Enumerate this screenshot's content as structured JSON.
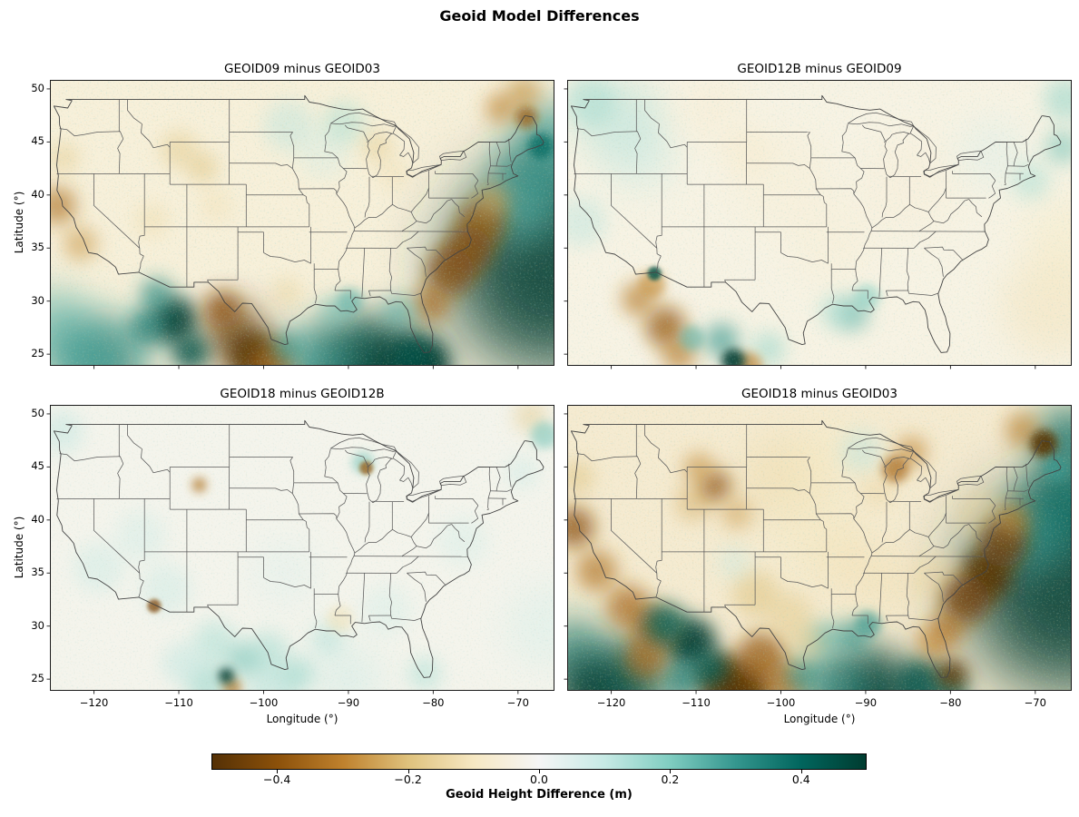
{
  "figure": {
    "suptitle": "Geoid Model Differences"
  },
  "chart_data": {
    "type": "heatmap",
    "layout": "2x2 map grid with shared horizontal colorbar",
    "suptitle": "Geoid Model Differences",
    "axes": {
      "xlabel": "Longitude (°)",
      "ylabel": "Latitude (°)",
      "xtick_labels": [
        "−120",
        "−110",
        "−100",
        "−90",
        "−80",
        "−70"
      ],
      "xtick_values": [
        -120,
        -110,
        -100,
        -90,
        -80,
        -70
      ],
      "ytick_labels": [
        "50",
        "45",
        "40",
        "35",
        "30",
        "25"
      ],
      "ytick_values": [
        50,
        45,
        40,
        35,
        30,
        25
      ],
      "lon_range": [
        -125.2,
        -65.7
      ],
      "lat_range": [
        23.9,
        50.85
      ],
      "grid": false,
      "region": "Continental United States with state boundaries"
    },
    "colorbar": {
      "label": "Geoid Height Difference (m)",
      "tick_labels": [
        "−0.4",
        "−0.2",
        "0.0",
        "0.2",
        "0.4"
      ],
      "tick_values": [
        -0.4,
        -0.2,
        0.0,
        0.2,
        0.4
      ],
      "vmin": -0.5,
      "vmax": 0.5,
      "colormap": "BrBG",
      "stops": [
        "#543005",
        "#8c510a",
        "#bf812d",
        "#dfc27d",
        "#f6e8c3",
        "#f5f5f5",
        "#c7eae5",
        "#80cdc1",
        "#35978f",
        "#01665e",
        "#003c30"
      ]
    },
    "features_format": "[lon_deg, lat_deg, value_m, radius_deg]",
    "panels": [
      {
        "title": "GEOID09 minus GEOID03",
        "base": "#f7f0da",
        "noise_teal": 0.55,
        "noise_tan": 0.5,
        "features": [
          [
            -66.0,
            33.0,
            0.5,
            12
          ],
          [
            -67.5,
            41.5,
            0.35,
            5
          ],
          [
            -70.0,
            38.5,
            0.25,
            4
          ],
          [
            -66.0,
            45.5,
            0.3,
            4
          ],
          [
            -89.0,
            23.8,
            0.45,
            6
          ],
          [
            -84.0,
            23.5,
            0.5,
            5
          ],
          [
            -94.5,
            24.2,
            0.3,
            4
          ],
          [
            -118.5,
            24.5,
            0.35,
            5
          ],
          [
            -124.5,
            28.0,
            0.25,
            4
          ],
          [
            -122.0,
            25.0,
            0.3,
            4
          ],
          [
            -74.3,
            37.3,
            -0.38,
            2.8
          ],
          [
            -75.9,
            34.8,
            -0.42,
            2.8
          ],
          [
            -78.0,
            32.8,
            -0.42,
            2.8
          ],
          [
            -80.2,
            29.8,
            -0.35,
            2.2
          ],
          [
            -73.0,
            39.5,
            -0.25,
            2.0
          ],
          [
            -80.6,
            24.2,
            0.55,
            2.4
          ],
          [
            -82.5,
            24.8,
            0.45,
            2.2
          ],
          [
            -103.2,
            26.6,
            -0.55,
            3.4
          ],
          [
            -101.0,
            24.6,
            -0.5,
            3.0
          ],
          [
            -104.8,
            29.2,
            -0.4,
            2.2
          ],
          [
            -99.0,
            24.0,
            -0.35,
            2.5
          ],
          [
            -110.6,
            28.2,
            0.5,
            2.8
          ],
          [
            -108.6,
            25.2,
            0.45,
            2.2
          ],
          [
            -112.6,
            30.6,
            0.32,
            2.0
          ],
          [
            -113.8,
            27.5,
            0.35,
            2.2
          ],
          [
            -124.3,
            39.0,
            -0.33,
            2.2
          ],
          [
            -121.6,
            35.4,
            -0.26,
            2.0
          ],
          [
            -123.6,
            43.5,
            -0.18,
            1.8
          ],
          [
            -110.0,
            44.3,
            -0.18,
            2.2
          ],
          [
            -107.2,
            42.6,
            -0.2,
            1.8
          ],
          [
            -105.6,
            39.0,
            -0.12,
            2.0
          ],
          [
            -113.2,
            37.6,
            -0.14,
            2.0
          ],
          [
            -97.2,
            30.8,
            -0.16,
            1.8
          ],
          [
            -86.6,
            44.6,
            -0.18,
            1.8
          ],
          [
            -84.8,
            42.0,
            -0.12,
            2.0
          ],
          [
            -72.0,
            48.2,
            -0.3,
            1.8
          ],
          [
            -69.3,
            49.6,
            -0.28,
            2.0
          ],
          [
            -69.0,
            47.3,
            -0.38,
            1.3
          ],
          [
            -67.3,
            44.6,
            0.4,
            1.5
          ],
          [
            -91.5,
            29.0,
            0.22,
            1.8
          ],
          [
            -89.8,
            30.0,
            0.25,
            1.5
          ],
          [
            -84.0,
            29.0,
            0.25,
            2.0
          ],
          [
            -97.2,
            25.6,
            0.3,
            1.8
          ],
          [
            -97.0,
            46.5,
            0.12,
            3
          ],
          [
            -90.5,
            46.8,
            0.15,
            2.5
          ],
          [
            -93.0,
            44.0,
            0.08,
            3
          ]
        ]
      },
      {
        "title": "GEOID12B minus GEOID09",
        "base": "#f7f3e4",
        "noise_teal": 0.5,
        "noise_tan": 0.35,
        "features": [
          [
            -119.0,
            47.0,
            0.14,
            5
          ],
          [
            -122.5,
            48.8,
            0.16,
            3
          ],
          [
            -116.5,
            43.5,
            0.1,
            4
          ],
          [
            -123.5,
            37.5,
            0.12,
            3
          ],
          [
            -115.2,
            31.6,
            -0.28,
            1.6
          ],
          [
            -116.8,
            30.2,
            -0.32,
            2.0
          ],
          [
            -113.6,
            27.6,
            -0.38,
            2.4
          ],
          [
            -112.0,
            25.0,
            -0.32,
            2.0
          ],
          [
            -110.5,
            26.5,
            0.25,
            1.5
          ],
          [
            -114.9,
            32.6,
            0.45,
            0.8
          ],
          [
            -105.6,
            24.4,
            0.55,
            1.4
          ],
          [
            -107.0,
            26.3,
            0.3,
            2.0
          ],
          [
            -103.8,
            23.9,
            -0.3,
            1.6
          ],
          [
            -101.5,
            25.5,
            0.18,
            2.0
          ],
          [
            -91.6,
            28.8,
            0.25,
            2.0
          ],
          [
            -89.8,
            30.4,
            0.2,
            1.5
          ],
          [
            -93.5,
            29.0,
            0.15,
            2.0
          ],
          [
            -68.0,
            29.5,
            -0.12,
            6
          ],
          [
            -66.5,
            36.0,
            -0.1,
            5
          ],
          [
            -70.5,
            41.3,
            0.15,
            2.2
          ],
          [
            -66.8,
            44.5,
            0.22,
            2.0
          ],
          [
            -66.5,
            49.0,
            0.18,
            2.5
          ],
          [
            -100.0,
            41.5,
            -0.07,
            6
          ],
          [
            -94.0,
            35.5,
            -0.07,
            5
          ],
          [
            -85.0,
            41.0,
            -0.06,
            6
          ],
          [
            -75.0,
            44.0,
            0.07,
            4
          ],
          [
            -108.0,
            48.0,
            -0.08,
            4
          ],
          [
            -104.0,
            44.0,
            -0.08,
            3
          ]
        ]
      },
      {
        "title": "GEOID18 minus GEOID12B",
        "base": "#f4f4ec",
        "noise_teal": 0.4,
        "noise_tan": 0.25,
        "features": [
          [
            -107.6,
            43.3,
            -0.33,
            0.9
          ],
          [
            -87.9,
            44.9,
            -0.38,
            0.8
          ],
          [
            -88.3,
            45.4,
            0.22,
            1.3
          ],
          [
            -112.9,
            31.9,
            -0.42,
            0.8
          ],
          [
            -104.4,
            25.3,
            0.55,
            0.9
          ],
          [
            -103.7,
            24.2,
            -0.32,
            1.1
          ],
          [
            -102.5,
            26.8,
            0.22,
            2.0
          ],
          [
            -105.8,
            28.5,
            0.15,
            2.5
          ],
          [
            -99.5,
            27.5,
            0.16,
            2.5
          ],
          [
            -96.0,
            25.5,
            0.18,
            2.0
          ],
          [
            -91.0,
            30.7,
            -0.13,
            1.6
          ],
          [
            -92.5,
            28.8,
            0.14,
            2.0
          ],
          [
            -119.5,
            35.5,
            0.1,
            3
          ],
          [
            -114.5,
            38.5,
            0.09,
            3
          ],
          [
            -123.8,
            48.3,
            0.12,
            2.5
          ],
          [
            -111.5,
            33.5,
            0.1,
            3
          ],
          [
            -76.5,
            38.0,
            0.08,
            3
          ],
          [
            -69.5,
            44.5,
            0.1,
            2
          ],
          [
            -66.9,
            48.0,
            0.22,
            1.6
          ],
          [
            -68.5,
            49.8,
            -0.18,
            2.0
          ],
          [
            -85.5,
            31.5,
            0.08,
            3
          ],
          [
            -97.5,
            35.0,
            0.06,
            4
          ],
          [
            -81.0,
            25.5,
            0.15,
            2
          ],
          [
            -90.0,
            25.0,
            0.1,
            4
          ],
          [
            -99.0,
            24.0,
            0.14,
            3
          ],
          [
            -106.5,
            24.5,
            0.18,
            2.5
          ],
          [
            -109.5,
            26.5,
            0.12,
            2.5
          ],
          [
            -66.5,
            30.0,
            0.08,
            5
          ]
        ]
      },
      {
        "title": "GEOID18 minus GEOID03",
        "base": "#f5ebd1",
        "noise_teal": 0.5,
        "noise_tan": 0.6,
        "features": [
          [
            -66.0,
            33.5,
            0.5,
            12
          ],
          [
            -66.5,
            41.5,
            0.4,
            5
          ],
          [
            -70.5,
            38.0,
            0.3,
            4
          ],
          [
            -66.0,
            47.5,
            0.4,
            4
          ],
          [
            -73.8,
            37.8,
            -0.45,
            2.8
          ],
          [
            -75.8,
            34.8,
            -0.5,
            3.0
          ],
          [
            -78.2,
            32.5,
            -0.45,
            2.8
          ],
          [
            -80.3,
            29.8,
            -0.35,
            2.0
          ],
          [
            -72.6,
            40.0,
            -0.3,
            2.0
          ],
          [
            -82.0,
            28.5,
            -0.3,
            2.0
          ],
          [
            -79.8,
            25.4,
            -0.55,
            1.8
          ],
          [
            -83.5,
            24.5,
            0.45,
            3.0
          ],
          [
            -80.0,
            23.8,
            0.4,
            2.0
          ],
          [
            -89.0,
            23.8,
            0.5,
            5
          ],
          [
            -93.8,
            24.4,
            0.35,
            4
          ],
          [
            -97.3,
            25.3,
            0.3,
            2.0
          ],
          [
            -91.5,
            29.0,
            0.3,
            2.0
          ],
          [
            -89.7,
            30.2,
            0.3,
            1.5
          ],
          [
            -94.8,
            28.8,
            0.25,
            2.0
          ],
          [
            -106.8,
            24.8,
            -0.6,
            3.2
          ],
          [
            -104.0,
            23.9,
            -0.5,
            3.0
          ],
          [
            -102.3,
            27.0,
            -0.38,
            3.0
          ],
          [
            -99.5,
            24.5,
            -0.35,
            2.5
          ],
          [
            -110.6,
            28.4,
            0.55,
            3.0
          ],
          [
            -113.6,
            30.2,
            0.4,
            2.4
          ],
          [
            -108.2,
            26.0,
            0.42,
            2.0
          ],
          [
            -111.5,
            25.0,
            0.35,
            2.5
          ],
          [
            -118.5,
            24.5,
            0.45,
            5
          ],
          [
            -124.5,
            27.5,
            0.35,
            4
          ],
          [
            -122.5,
            24.0,
            0.5,
            4
          ],
          [
            -124.4,
            39.3,
            -0.4,
            2.4
          ],
          [
            -121.7,
            35.2,
            -0.33,
            2.4
          ],
          [
            -118.0,
            31.8,
            -0.35,
            2.6
          ],
          [
            -114.8,
            29.8,
            -0.4,
            2.6
          ],
          [
            -116.0,
            27.0,
            -0.35,
            2.5
          ],
          [
            -124.0,
            44.0,
            -0.2,
            2.0
          ],
          [
            -107.7,
            43.2,
            -0.4,
            1.8
          ],
          [
            -109.7,
            44.9,
            -0.28,
            1.8
          ],
          [
            -110.3,
            41.6,
            -0.22,
            2.2
          ],
          [
            -105.2,
            40.6,
            -0.25,
            1.8
          ],
          [
            -103.0,
            33.0,
            -0.2,
            2.8
          ],
          [
            -99.0,
            31.0,
            -0.18,
            2.8
          ],
          [
            -97.0,
            28.5,
            -0.18,
            2.0
          ],
          [
            -86.5,
            44.8,
            -0.35,
            1.6
          ],
          [
            -84.6,
            46.4,
            -0.3,
            1.8
          ],
          [
            -88.5,
            42.8,
            -0.15,
            2.0
          ],
          [
            -92.0,
            36.0,
            -0.12,
            4
          ],
          [
            -100.0,
            44.0,
            -0.14,
            5
          ],
          [
            -96.0,
            39.0,
            -0.1,
            5
          ],
          [
            -87.0,
            34.0,
            -0.12,
            4
          ],
          [
            -81.5,
            34.5,
            -0.15,
            3
          ],
          [
            -76.5,
            40.5,
            -0.15,
            3
          ],
          [
            -69.0,
            47.2,
            -0.5,
            1.6
          ],
          [
            -71.5,
            48.5,
            -0.3,
            2.0
          ],
          [
            -67.5,
            44.8,
            0.3,
            1.5
          ],
          [
            -95.0,
            46.0,
            -0.1,
            4
          ],
          [
            -90.5,
            46.5,
            0.12,
            2.5
          ],
          [
            -105.5,
            36.0,
            0.1,
            2
          ]
        ]
      }
    ]
  }
}
